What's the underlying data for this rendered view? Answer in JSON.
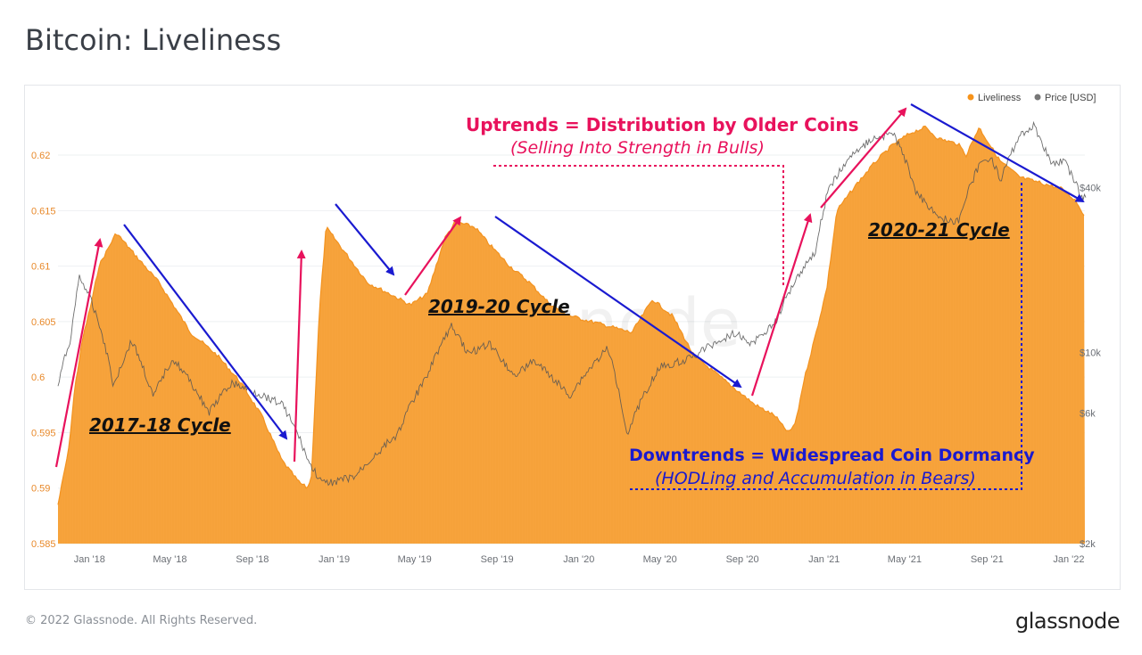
{
  "page": {
    "title": "Bitcoin: Liveliness",
    "copyright": "© 2022 Glassnode. All Rights Reserved.",
    "brand": "glassnode",
    "watermark": "glassnode"
  },
  "legend": {
    "items": [
      {
        "label": "Liveliness",
        "color": "#f7931a"
      },
      {
        "label": "Price [USD]",
        "color": "#777777"
      }
    ]
  },
  "annotations": {
    "cycle_2017": "2017-18 Cycle",
    "cycle_2019": "2019-20 Cycle",
    "cycle_2020": "2020-21 Cycle",
    "uptrends_title": "Uptrends = Distribution by Older Coins",
    "uptrends_sub": "(Selling Into Strength in Bulls)",
    "downtrends_title": "Downtrends = Widespread Coin Dormancy",
    "downtrends_sub": "(HODLing and Accumulation in Bears)"
  },
  "colors": {
    "liveliness_fill": "#f7a33c",
    "liveliness_edge": "#f39320",
    "price_line": "#555555",
    "uptrend_arrow": "#e8125c",
    "downtrend_arrow": "#1a1ad0",
    "left_tick": "#e8892a",
    "right_tick": "#6b6f75"
  },
  "chart_data": {
    "type": "area",
    "title": "Bitcoin: Liveliness",
    "x_ticks": [
      "Jan '18",
      "May '18",
      "Sep '18",
      "Jan '19",
      "May '19",
      "Sep '19",
      "Jan '20",
      "May '20",
      "Sep '20",
      "Jan '21",
      "May '21",
      "Sep '21",
      "Jan '22"
    ],
    "y_left": {
      "ticks": [
        "0.585",
        "0.59",
        "0.595",
        "0.6",
        "0.605",
        "0.61",
        "0.615",
        "0.62"
      ],
      "range": [
        0.585,
        0.6245
      ]
    },
    "y_right": {
      "ticks": [
        "$2k",
        "$6k",
        "$10k",
        "$40k"
      ],
      "tick_values": [
        2000,
        6000,
        10000,
        40000
      ],
      "scale": "log"
    },
    "grid": true,
    "legend_position": "top-right",
    "series": [
      {
        "name": "Liveliness",
        "x": [
          "2017-11-15",
          "2017-12-01",
          "2017-12-10",
          "2017-12-22",
          "2018-01-05",
          "2018-01-15",
          "2018-02-10",
          "2018-03-10",
          "2018-04-15",
          "2018-06-01",
          "2018-07-10",
          "2018-08-15",
          "2018-09-15",
          "2018-10-15",
          "2018-11-10",
          "2018-11-22",
          "2018-11-28",
          "2018-12-10",
          "2018-12-20",
          "2019-01-20",
          "2019-02-20",
          "2019-03-25",
          "2019-04-25",
          "2019-05-20",
          "2019-06-15",
          "2019-07-01",
          "2019-07-30",
          "2019-08-20",
          "2019-09-20",
          "2019-10-20",
          "2019-11-20",
          "2019-12-20",
          "2020-01-20",
          "2020-02-20",
          "2020-03-20",
          "2020-04-20",
          "2020-05-20",
          "2020-06-20",
          "2020-07-20",
          "2020-08-20",
          "2020-09-20",
          "2020-10-20",
          "2020-11-01",
          "2020-11-10",
          "2020-11-20",
          "2020-12-01",
          "2020-12-20",
          "2021-01-05",
          "2021-01-20",
          "2021-02-20",
          "2021-03-20",
          "2021-04-15",
          "2021-05-10",
          "2021-06-01",
          "2021-06-20",
          "2021-07-20",
          "2021-08-01",
          "2021-08-20",
          "2021-09-20",
          "2021-10-20",
          "2021-11-20",
          "2021-12-20",
          "2022-01-10",
          "2022-01-25"
        ],
        "values": [
          0.5885,
          0.5935,
          0.599,
          0.6035,
          0.607,
          0.61,
          0.613,
          0.611,
          0.6085,
          0.604,
          0.602,
          0.5995,
          0.5965,
          0.5925,
          0.5905,
          0.59,
          0.591,
          0.606,
          0.6135,
          0.611,
          0.6085,
          0.6075,
          0.6065,
          0.6075,
          0.6125,
          0.614,
          0.6135,
          0.612,
          0.61,
          0.6085,
          0.6065,
          0.6055,
          0.605,
          0.6045,
          0.604,
          0.607,
          0.6055,
          0.602,
          0.6005,
          0.599,
          0.5975,
          0.5965,
          0.5955,
          0.595,
          0.596,
          0.5995,
          0.604,
          0.608,
          0.615,
          0.6175,
          0.6195,
          0.621,
          0.622,
          0.6225,
          0.6215,
          0.621,
          0.62,
          0.6225,
          0.6195,
          0.618,
          0.6175,
          0.617,
          0.616,
          0.6145
        ]
      },
      {
        "name": "Price [USD]",
        "x": [
          "2017-11-15",
          "2017-12-05",
          "2017-12-17",
          "2018-01-10",
          "2018-02-06",
          "2018-03-05",
          "2018-04-06",
          "2018-05-05",
          "2018-06-28",
          "2018-08-01",
          "2018-10-15",
          "2018-11-25",
          "2018-12-15",
          "2019-02-01",
          "2019-04-05",
          "2019-05-15",
          "2019-06-26",
          "2019-07-20",
          "2019-08-20",
          "2019-09-26",
          "2019-10-26",
          "2019-12-18",
          "2020-02-13",
          "2020-03-13",
          "2020-04-30",
          "2020-06-15",
          "2020-07-28",
          "2020-08-20",
          "2020-09-15",
          "2020-10-20",
          "2020-11-20",
          "2020-12-20",
          "2021-01-08",
          "2021-02-20",
          "2021-03-13",
          "2021-04-14",
          "2021-05-19",
          "2021-06-22",
          "2021-07-20",
          "2021-08-20",
          "2021-09-07",
          "2021-09-21",
          "2021-10-20",
          "2021-11-10",
          "2021-12-05",
          "2021-12-25",
          "2022-01-22",
          "2022-01-28"
        ],
        "values": [
          7500,
          11500,
          19000,
          14000,
          7500,
          11000,
          6800,
          9500,
          6000,
          7700,
          6500,
          3900,
          3300,
          3500,
          5000,
          7800,
          12500,
          9800,
          10800,
          8200,
          9300,
          6900,
          10300,
          5000,
          8800,
          9500,
          11000,
          11800,
          10700,
          12800,
          18500,
          23500,
          40000,
          55000,
          60000,
          63000,
          38000,
          31000,
          30000,
          48000,
          52000,
          42000,
          62000,
          67000,
          49000,
          50000,
          36000,
          37500
        ]
      }
    ]
  }
}
